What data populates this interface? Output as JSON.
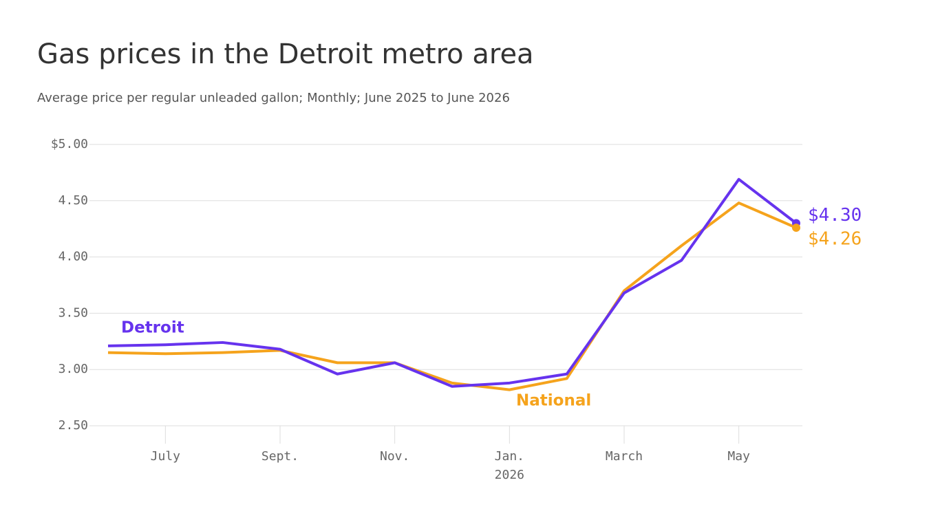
{
  "chart_data": {
    "type": "line",
    "title": "Gas prices in the Detroit metro area",
    "subtitle": "Average price per regular unleaded gallon; Monthly; June 2025 to June 2026",
    "categories": [
      null,
      "July",
      null,
      "Sept.",
      null,
      "Nov.",
      null,
      "Jan.",
      null,
      "March",
      null,
      "May",
      null
    ],
    "year_label": "2026",
    "series": [
      {
        "name": "Detroit",
        "color": "#6633ee",
        "values": [
          3.21,
          3.22,
          3.24,
          3.18,
          2.96,
          3.06,
          2.85,
          2.88,
          2.96,
          3.68,
          3.97,
          4.69,
          4.3
        ],
        "value_labels": [
          null,
          null,
          null,
          null,
          null,
          null,
          null,
          null,
          null,
          null,
          null,
          null,
          "$4.30"
        ]
      },
      {
        "name": "National",
        "color": "#f5a31c",
        "values": [
          3.15,
          3.14,
          3.15,
          3.17,
          3.06,
          3.06,
          2.88,
          2.82,
          2.92,
          3.7,
          4.1,
          4.48,
          4.26
        ],
        "value_labels": [
          null,
          null,
          null,
          null,
          null,
          null,
          null,
          null,
          null,
          null,
          null,
          null,
          "$4.26"
        ]
      }
    ],
    "ylim": [
      2.5,
      5.0
    ],
    "yticks": [
      {
        "value": 2.5,
        "label": "2.50"
      },
      {
        "value": 3.0,
        "label": "3.00"
      },
      {
        "value": 3.5,
        "label": "3.50"
      },
      {
        "value": 4.0,
        "label": "4.00"
      },
      {
        "value": 4.5,
        "label": "4.50"
      },
      {
        "value": 5.0,
        "label": "$5.00"
      }
    ],
    "grid": true
  }
}
